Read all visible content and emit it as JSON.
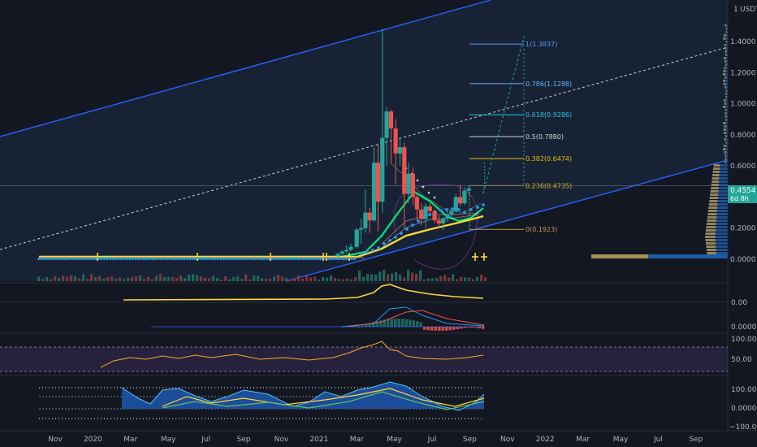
{
  "chart_data": {
    "type": "candlestick",
    "currency": "USDT",
    "price_axis": {
      "ticks": [
        "1.4000",
        "1.2000",
        "1.0000",
        "0.8000",
        "0.6000",
        "0.4000",
        "0.2000",
        "0.0000"
      ],
      "tick_values": [
        1.4,
        1.2,
        1.0,
        0.8,
        0.6,
        0.4,
        0.2,
        0.0
      ],
      "range": [
        -0.02,
        1.6
      ],
      "scale_top_label": "1"
    },
    "time_axis": {
      "labels": [
        "Nov",
        "2020",
        "Mar",
        "May",
        "Jul",
        "Sep",
        "Nov",
        "2021",
        "Mar",
        "May",
        "Jul",
        "Sep",
        "Nov",
        "2022",
        "Mar",
        "May",
        "Jul",
        "Sep"
      ],
      "dates": [
        "2019-11",
        "2020-01",
        "2020-03",
        "2020-05",
        "2020-07",
        "2020-09",
        "2020-11",
        "2021-01",
        "2021-03",
        "2021-05",
        "2021-07",
        "2021-09",
        "2021-11",
        "2022-01",
        "2022-03",
        "2022-05",
        "2022-07",
        "2022-09"
      ]
    },
    "last_price": {
      "value": 0.4554,
      "label": "0.4554",
      "countdown": "6d 8h"
    },
    "fibonacci": [
      {
        "level": 1,
        "value": 1.3837,
        "label": "1(1.3837)",
        "color": "#5b9cf6"
      },
      {
        "level": 0.786,
        "value": 1.1288,
        "label": "0.786(1.1288)",
        "color": "#64b5f6"
      },
      {
        "level": 0.618,
        "value": 0.9286,
        "label": "0.618(0.9286)",
        "color": "#26c6da"
      },
      {
        "level": 0.5,
        "value": 0.788,
        "label": "0.5(0.7880)",
        "color": "#d1d4dc"
      },
      {
        "level": 0.382,
        "value": 0.6474,
        "label": "0.382(0.6474)",
        "color": "#f0b90b"
      },
      {
        "level": 0.236,
        "value": 0.4735,
        "label": "0.236(0.4735)",
        "color": "#f0b90b"
      },
      {
        "level": 0,
        "value": 0.1923,
        "label": "0(0.1923)",
        "color": "#c49a47"
      }
    ],
    "candles": [
      {
        "date": "2021-02-01",
        "o": 0.02,
        "h": 0.04,
        "l": 0.015,
        "c": 0.035
      },
      {
        "date": "2021-02-08",
        "o": 0.035,
        "h": 0.06,
        "l": 0.03,
        "c": 0.05
      },
      {
        "date": "2021-02-15",
        "o": 0.05,
        "h": 0.09,
        "l": 0.04,
        "c": 0.06
      },
      {
        "date": "2021-02-22",
        "o": 0.06,
        "h": 0.1,
        "l": 0.05,
        "c": 0.08
      },
      {
        "date": "2021-03-01",
        "o": 0.08,
        "h": 0.2,
        "l": 0.07,
        "c": 0.19
      },
      {
        "date": "2021-03-08",
        "o": 0.19,
        "h": 0.26,
        "l": 0.1,
        "c": 0.2
      },
      {
        "date": "2021-03-15",
        "o": 0.2,
        "h": 0.45,
        "l": 0.17,
        "c": 0.3
      },
      {
        "date": "2021-03-22",
        "o": 0.3,
        "h": 0.33,
        "l": 0.17,
        "c": 0.25
      },
      {
        "date": "2021-03-29",
        "o": 0.25,
        "h": 0.72,
        "l": 0.24,
        "c": 0.62
      },
      {
        "date": "2021-04-05",
        "o": 0.62,
        "h": 0.74,
        "l": 0.18,
        "c": 0.37
      },
      {
        "date": "2021-04-12",
        "o": 0.37,
        "h": 1.48,
        "l": 0.3,
        "c": 0.78
      },
      {
        "date": "2021-04-19",
        "o": 0.78,
        "h": 0.98,
        "l": 0.6,
        "c": 0.95
      },
      {
        "date": "2021-04-26",
        "o": 0.95,
        "h": 0.96,
        "l": 0.62,
        "c": 0.84
      },
      {
        "date": "2021-05-03",
        "o": 0.84,
        "h": 0.9,
        "l": 0.48,
        "c": 0.68
      },
      {
        "date": "2021-05-10",
        "o": 0.68,
        "h": 0.78,
        "l": 0.6,
        "c": 0.72
      },
      {
        "date": "2021-05-17",
        "o": 0.72,
        "h": 0.75,
        "l": 0.2,
        "c": 0.42
      },
      {
        "date": "2021-05-24",
        "o": 0.42,
        "h": 0.62,
        "l": 0.36,
        "c": 0.55
      },
      {
        "date": "2021-05-31",
        "o": 0.55,
        "h": 0.59,
        "l": 0.35,
        "c": 0.4
      },
      {
        "date": "2021-06-07",
        "o": 0.4,
        "h": 0.42,
        "l": 0.25,
        "c": 0.32
      },
      {
        "date": "2021-06-14",
        "o": 0.32,
        "h": 0.36,
        "l": 0.22,
        "c": 0.26
      },
      {
        "date": "2021-06-21",
        "o": 0.26,
        "h": 0.36,
        "l": 0.2,
        "c": 0.34
      },
      {
        "date": "2021-06-28",
        "o": 0.34,
        "h": 0.36,
        "l": 0.29,
        "c": 0.31
      },
      {
        "date": "2021-07-05",
        "o": 0.31,
        "h": 0.32,
        "l": 0.23,
        "c": 0.25
      },
      {
        "date": "2021-07-12",
        "o": 0.25,
        "h": 0.28,
        "l": 0.2,
        "c": 0.23
      },
      {
        "date": "2021-07-19",
        "o": 0.23,
        "h": 0.27,
        "l": 0.19,
        "c": 0.26
      },
      {
        "date": "2021-07-26",
        "o": 0.26,
        "h": 0.31,
        "l": 0.24,
        "c": 0.29
      },
      {
        "date": "2021-08-02",
        "o": 0.29,
        "h": 0.33,
        "l": 0.27,
        "c": 0.31
      },
      {
        "date": "2021-08-09",
        "o": 0.31,
        "h": 0.42,
        "l": 0.3,
        "c": 0.4
      },
      {
        "date": "2021-08-16",
        "o": 0.4,
        "h": 0.48,
        "l": 0.34,
        "c": 0.36
      },
      {
        "date": "2021-08-23",
        "o": 0.36,
        "h": 0.46,
        "l": 0.35,
        "c": 0.44
      },
      {
        "date": "2021-08-30",
        "o": 0.44,
        "h": 0.47,
        "l": 0.41,
        "c": 0.455
      }
    ],
    "rsi_axis": {
      "ticks": [
        "100.00",
        "50.00"
      ],
      "tick_values": [
        100,
        50
      ],
      "range": [
        0,
        130
      ]
    },
    "oscillator_axis": {
      "ticks": [
        "100.0000",
        "0.0000",
        "−100.0000"
      ],
      "tick_values": [
        100,
        0,
        -100
      ],
      "range": [
        -125,
        125
      ]
    },
    "macd_axis": {
      "ticks": [
        "0.0000"
      ],
      "tick_values": [
        0
      ]
    },
    "obv_axis": {
      "ticks": [
        "0.00"
      ],
      "tick_values": [
        0
      ]
    }
  },
  "colors": {
    "background": "#131722",
    "up": "#26a69a",
    "down": "#ef5350",
    "channel": "#2962ff",
    "price_label": "#26a69a",
    "rsi_band": "#7e57c2",
    "yellow": "#fdd835",
    "green_ma": "#00e676",
    "sar": "#2196f3"
  }
}
